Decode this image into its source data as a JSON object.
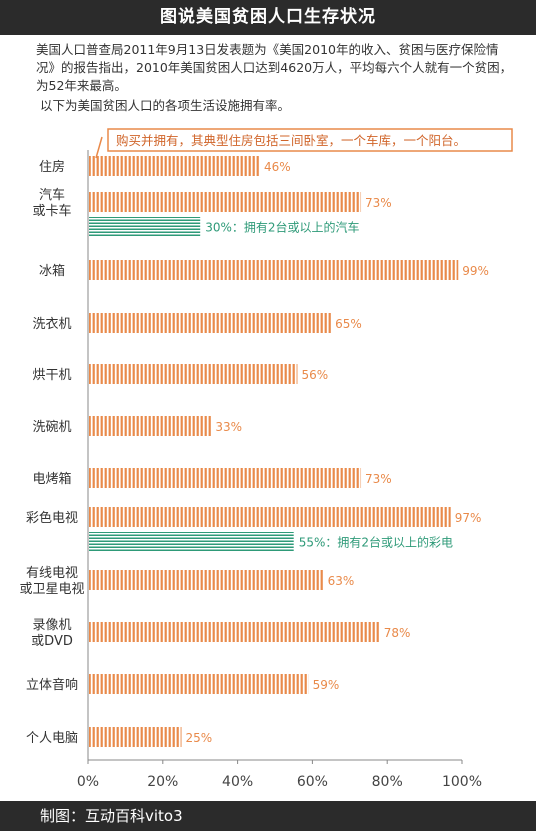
{
  "header": {
    "title": "图说美国贫困人口生存状况"
  },
  "intro": {
    "paragraph": "美国人口普查局2011年9月13日发表题为《美国2010年的收入、贫困与医疗保险情况》的报告指出，2010年美国贫困人口达到4620万人，平均每六个人就有一个贫困，为52年来最高。",
    "subtitle": "以下为美国贫困人口的各项生活设施拥有率。"
  },
  "footer": {
    "credit": "制图：互动百科vito3"
  },
  "colors": {
    "primary": "#e98a4a",
    "secondary": "#2e9a78",
    "dark": "#2b2b2b",
    "axis": "#888888"
  },
  "chart_data": {
    "type": "bar",
    "orientation": "horizontal",
    "xlim": [
      0,
      100
    ],
    "x_ticks": [
      "0%",
      "20%",
      "40%",
      "60%",
      "80%",
      "100%"
    ],
    "categories": [
      "住房",
      "汽车或卡车",
      "冰箱",
      "洗衣机",
      "烘干机",
      "洗碗机",
      "电烤箱",
      "彩色电视",
      "有线电视或卫星电视",
      "录像机或DVD",
      "立体音响",
      "个人电脑"
    ],
    "category_lines": [
      [
        "住房"
      ],
      [
        "汽车",
        "或卡车"
      ],
      [
        "冰箱"
      ],
      [
        "洗衣机"
      ],
      [
        "烘干机"
      ],
      [
        "洗碗机"
      ],
      [
        "电烤箱"
      ],
      [
        "彩色电视"
      ],
      [
        "有线电视",
        "或卫星电视"
      ],
      [
        "录像机",
        "或DVD"
      ],
      [
        "立体音响"
      ],
      [
        "个人电脑"
      ]
    ],
    "values": [
      46,
      73,
      99,
      65,
      56,
      33,
      73,
      97,
      63,
      78,
      59,
      25
    ],
    "labels": [
      "46%",
      "73%",
      "99%",
      "65%",
      "56%",
      "33%",
      "73%",
      "97%",
      "63%",
      "78%",
      "59%",
      "25%"
    ],
    "sub_bars": [
      {
        "category": "汽车或卡车",
        "value": 30,
        "label": "30%：拥有2台或以上的汽车"
      },
      {
        "category": "彩色电视",
        "value": 55,
        "label": "55%：拥有2台或以上的彩电"
      }
    ],
    "annotation": {
      "category": "住房",
      "text": "购买并拥有，其典型住房包括三间卧室，一个车库，一个阳台。"
    }
  }
}
